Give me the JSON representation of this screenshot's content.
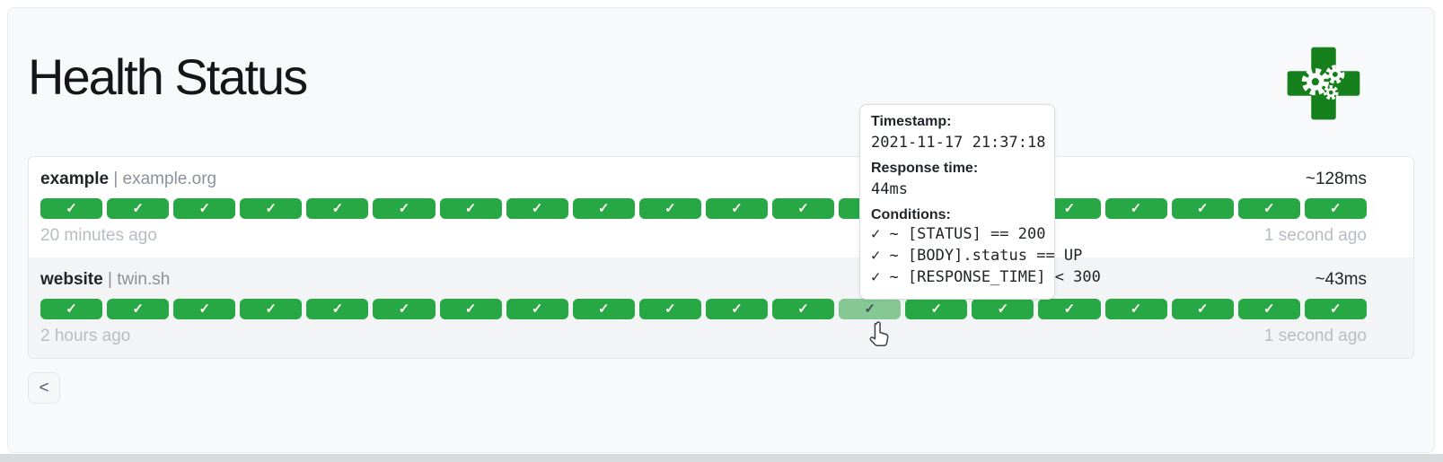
{
  "page": {
    "title": "Health Status"
  },
  "colors": {
    "success": "#28a745",
    "success_hovered": "#85c894",
    "logo_green": "#15801c",
    "muted_text": "#b6bdc4",
    "secondary_text": "#8b9299"
  },
  "icons": {
    "check": "✓",
    "chevron_left": "<"
  },
  "services": [
    {
      "name": "example",
      "separator": "|",
      "hostname": "example.org",
      "avg_response_time": "~128ms",
      "oldest": "20 minutes ago",
      "newest": "1 second ago",
      "hovered_index": -1,
      "results": [
        "up",
        "up",
        "up",
        "up",
        "up",
        "up",
        "up",
        "up",
        "up",
        "up",
        "up",
        "up",
        "up",
        "up",
        "up",
        "up",
        "up",
        "up",
        "up",
        "up"
      ]
    },
    {
      "name": "website",
      "separator": "|",
      "hostname": "twin.sh",
      "avg_response_time": "~43ms",
      "oldest": "2 hours ago",
      "newest": "1 second ago",
      "hovered_index": 12,
      "results": [
        "up",
        "up",
        "up",
        "up",
        "up",
        "up",
        "up",
        "up",
        "up",
        "up",
        "up",
        "up",
        "up",
        "up",
        "up",
        "up",
        "up",
        "up",
        "up",
        "up"
      ]
    }
  ],
  "tooltip": {
    "timestamp_label": "Timestamp:",
    "timestamp": "2021-11-17 21:37:18",
    "response_time_label": "Response time:",
    "response_time": "44ms",
    "conditions_label": "Conditions:",
    "conditions": [
      "✓ ~ [STATUS] == 200",
      "✓ ~ [BODY].status == UP",
      "✓ ~ [RESPONSE_TIME] < 300"
    ]
  },
  "pagination": {
    "previous_label": "<"
  }
}
